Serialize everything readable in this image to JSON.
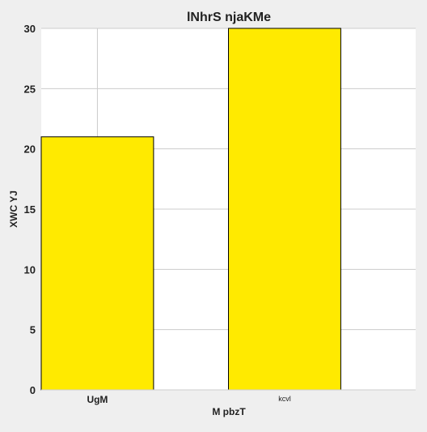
{
  "chart_data": {
    "type": "bar",
    "title": "lNhrS  njaKMe",
    "xlabel": "M pbzT",
    "ylabel": "XWC YJ",
    "categories": [
      "UgM",
      "kcvl"
    ],
    "category_label_style": [
      "bold",
      "small"
    ],
    "values": [
      21,
      30
    ],
    "ylim": [
      0,
      30
    ],
    "yticks": [
      0,
      5,
      10,
      15,
      20,
      25,
      30
    ],
    "grid": true,
    "legend": "none",
    "colors": {
      "bar": "#ffea00",
      "bar_stroke": "#000000",
      "plot_background": "#ffffff",
      "page_background": "#efefef",
      "grid": "#cccccc",
      "text": "#222222"
    }
  }
}
